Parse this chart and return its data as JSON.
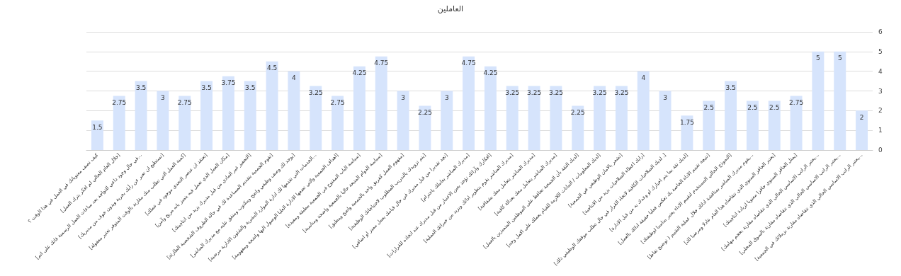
{
  "chart_data": {
    "type": "bar",
    "title": "العاملين",
    "categories": [
      "كيف تصف معنوياتك في العمل في هذا الوقت ؟",
      "[خلال العام الحالي لم افكر بترك العمل]",
      "[في حال وجود داعي للتواجد بعد ساعات العمل الرسمية فانك على اتم...",
      "[تستطيع ان تعبر عن رأيك بحرية وبدون خوف من مديريك]",
      "[كمية العمل التي تطلب منك مقارنة بالوقت المتوفر تعتبر معقولة]",
      "[تعتقد ان عنصر التحدي موجود في عملك]",
      "[مكان العمل الذي تعمل فيه يتميز بانه مريح وآمن]",
      "[التحفيز غير المادي من قبل مديرك يزيد من انتاجيتك]",
      "[تقوم الجمعية بتقديم المساعدة لك في حالة الظروف الشخصية الطارئة]",
      "[يوجد لك وصف وظيفي واضح ومكتوب ومتفق عليه مع مديرك المباشر]",
      "[الخدمات التي تقدمها لك ادارة الموارد البشرية والشئون الادارية مرضية...",
      "[اهداف الجمعية والتي تضعها الادارة العليا الوصول اليها واضحة ومفهومة]",
      "[سياسة الباب المفتوح في الجمعية مطبقة ومفيدة]",
      "[سياسة الدوام المتبعة حاليا بالجمعية واضحة ومناسبة]",
      "[مفهوم العمل كفريق واحد بالجمعية واضح ومطبق]",
      "[يتم تزويدك بالتدريب المطلوب لاحتياجاتك الوظيفية]",
      "[تجد تقديرا من قبل مديرك في حال قيامك بعمل مميز او اضافي]",
      "[مديرك المباشر يعاملك باحترام]",
      "[افكارك وآرائك تؤخذ بعين الاعتبار من قبل مديرك عند اتخاذه للقرارات]",
      "[مديرك المباشر يقوم بتطوير ادائك ويزيد من خبراتك العملية]",
      "[مديرك المباشر يتعامل معك بشفافية]",
      "[مديرك المباشر يتعامل معك بعدالة كافية]",
      "[لديك الثقة بأن الجمعية تحافظ على الموظفين المتميزين بالعمل]",
      "[لديك المعلومات / البيانات اللازمة للقيام بعملك على اكمل وجه]",
      "[تشعر بالامان الوظيفي في الجمعية]",
      "[رايك اعطاء الصلاحيات يزيد من الانتاجية]",
      "[لديك الصلاحيات الكافية لاتخاذ القرار في حال تطلب موقفك الوظيفي ذلك .]",
      "[لديك ثقة بما يتم اخبارك او وعدك به من قبل الادارة]",
      "[نتيجة تقييم الاداء الخاصة بك تعكس فعليا حقيقة ادائك بالعمل]",
      "[النموذج الحالي المستخدم لتقييم الاداء يعتبر مناسبا لوظيفتك]",
      "[يقوم مديرك المباشر بمناقشة ادائك خلال عملية التقييم ( توضيح نقاط...",
      "[يعتبر الحافز السنوي الذي تتقاضاه هذا العام عادلا ومرضيا لك]",
      "[يمثل الحافز السنوي حافزا معنويا لزيادة انتاجيتك]",
      "[يعتبر الراتب الاساسي الحالي الذي تتقاضاه مقارنة بحجم مهامك...",
      "[يعتبر الراتب الاساسي الحالي الذي تتقاضاه مقارنة بالسوق المحلي...",
      "[يعتبر الراتب الاساسي الحالي الذي تتقاضاه مقارنة بزملائك في الجمعية..."
    ],
    "values": [
      1.5,
      2.75,
      3.5,
      3,
      2.75,
      3.5,
      3.75,
      3.5,
      4.5,
      4,
      3.25,
      2.75,
      4.25,
      4.75,
      3,
      2.25,
      3,
      4.75,
      4.25,
      3.25,
      3.25,
      3.25,
      2.25,
      3.25,
      3.25,
      4,
      3,
      1.75,
      2.5,
      3.5,
      2.5,
      2.5,
      2.75,
      5,
      5,
      2
    ],
    "color": "#d6e4fc",
    "ylim": [
      0,
      6
    ],
    "yticks": [
      0,
      1,
      2,
      3,
      4,
      5,
      6
    ],
    "grid": true,
    "data_labels": true
  }
}
